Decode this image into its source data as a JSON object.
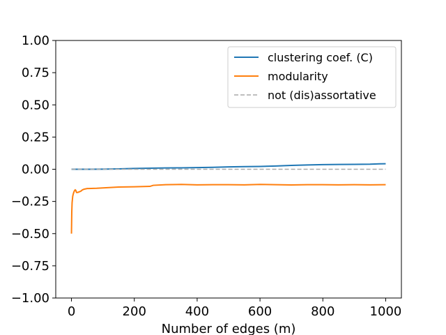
{
  "chart_data": {
    "type": "line",
    "title": "",
    "xlabel": "Number of edges (m)",
    "ylabel": "",
    "xlim": [
      -50,
      1050
    ],
    "ylim": [
      -1.0,
      1.0
    ],
    "x_ticks": [
      0,
      200,
      400,
      600,
      800,
      1000
    ],
    "x_tick_labels": [
      "0",
      "200",
      "400",
      "600",
      "800",
      "1000"
    ],
    "y_ticks": [
      1.0,
      0.75,
      0.5,
      0.25,
      0.0,
      -0.25,
      -0.5,
      -0.75,
      -1.0
    ],
    "y_tick_labels": [
      "1.00",
      "0.75",
      "0.50",
      "0.25",
      "0.00",
      "−0.25",
      "−0.50",
      "−0.75",
      "−1.00"
    ],
    "grid": false,
    "legend_position": "top-right",
    "series": [
      {
        "name": "clustering coef. (C)",
        "color": "#1f77b4",
        "style": "solid",
        "x": [
          0,
          25,
          50,
          100,
          150,
          200,
          250,
          300,
          350,
          400,
          450,
          500,
          550,
          600,
          650,
          700,
          750,
          800,
          850,
          900,
          950,
          980,
          1000
        ],
        "y": [
          0.0,
          0.0,
          0.0,
          0.001,
          0.003,
          0.006,
          0.008,
          0.01,
          0.011,
          0.013,
          0.015,
          0.018,
          0.02,
          0.022,
          0.025,
          0.03,
          0.033,
          0.036,
          0.037,
          0.038,
          0.039,
          0.042,
          0.043
        ]
      },
      {
        "name": "modularity",
        "color": "#ff7f0e",
        "style": "solid",
        "x": [
          0,
          1,
          2,
          4,
          6,
          8,
          10,
          12,
          14,
          16,
          20,
          25,
          30,
          35,
          40,
          50,
          80,
          100,
          150,
          200,
          250,
          260,
          300,
          350,
          400,
          450,
          500,
          550,
          600,
          650,
          700,
          750,
          800,
          850,
          900,
          950,
          1000
        ],
        "y": [
          -0.5,
          -0.33,
          -0.26,
          -0.21,
          -0.19,
          -0.175,
          -0.165,
          -0.16,
          -0.165,
          -0.18,
          -0.18,
          -0.175,
          -0.17,
          -0.16,
          -0.155,
          -0.15,
          -0.148,
          -0.145,
          -0.138,
          -0.136,
          -0.133,
          -0.125,
          -0.12,
          -0.118,
          -0.121,
          -0.12,
          -0.12,
          -0.121,
          -0.118,
          -0.12,
          -0.122,
          -0.12,
          -0.12,
          -0.121,
          -0.12,
          -0.121,
          -0.12
        ]
      },
      {
        "name": "not (dis)assortative",
        "color": "#a9a9a9",
        "style": "dashed",
        "x": [
          0,
          1000
        ],
        "y": [
          0.0,
          0.0
        ]
      }
    ]
  }
}
